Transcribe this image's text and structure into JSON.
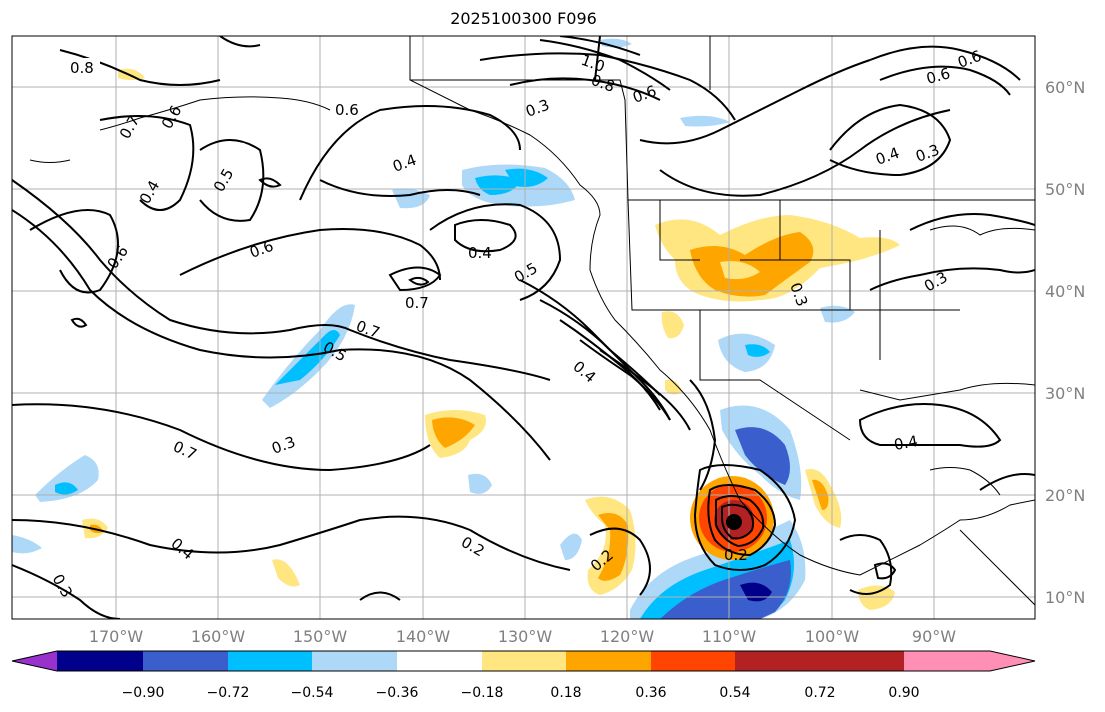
{
  "title": "2025100300 F096",
  "lat_labels": [
    "60°N",
    "50°N",
    "40°N",
    "30°N",
    "20°N",
    "10°N"
  ],
  "lon_labels": [
    "170°W",
    "160°W",
    "150°W",
    "140°W",
    "130°W",
    "120°W",
    "110°W",
    "100°W",
    "90°W"
  ],
  "colorbar": {
    "ticks": [
      "−0.90",
      "−0.72",
      "−0.54",
      "−0.36",
      "−0.18",
      "0.18",
      "0.36",
      "0.54",
      "0.72",
      "0.90"
    ],
    "colors": [
      "#9932cc",
      "#00008b",
      "#3a5fcd",
      "#00bfff",
      "#add8f8",
      "#ffffff",
      "#ffe680",
      "#ffa500",
      "#ff4500",
      "#b22222",
      "#ff8fb5"
    ]
  },
  "contour_labels": [
    "0.8",
    "0.6",
    "0.7",
    "0.6",
    "0.4",
    "0.5",
    "0.6",
    "0.6",
    "0.6",
    "0.4",
    "0.3",
    "1.0",
    "0.8",
    "0.6",
    "0.4",
    "0.5",
    "0.7",
    "0.7",
    "0.5",
    "0.4",
    "0.7",
    "0.3",
    "0.4",
    "0.3",
    "0.2",
    "0.2",
    "0.4",
    "0.3",
    "0.3",
    "0.3",
    "0.4",
    "0.6",
    "0.2"
  ]
}
